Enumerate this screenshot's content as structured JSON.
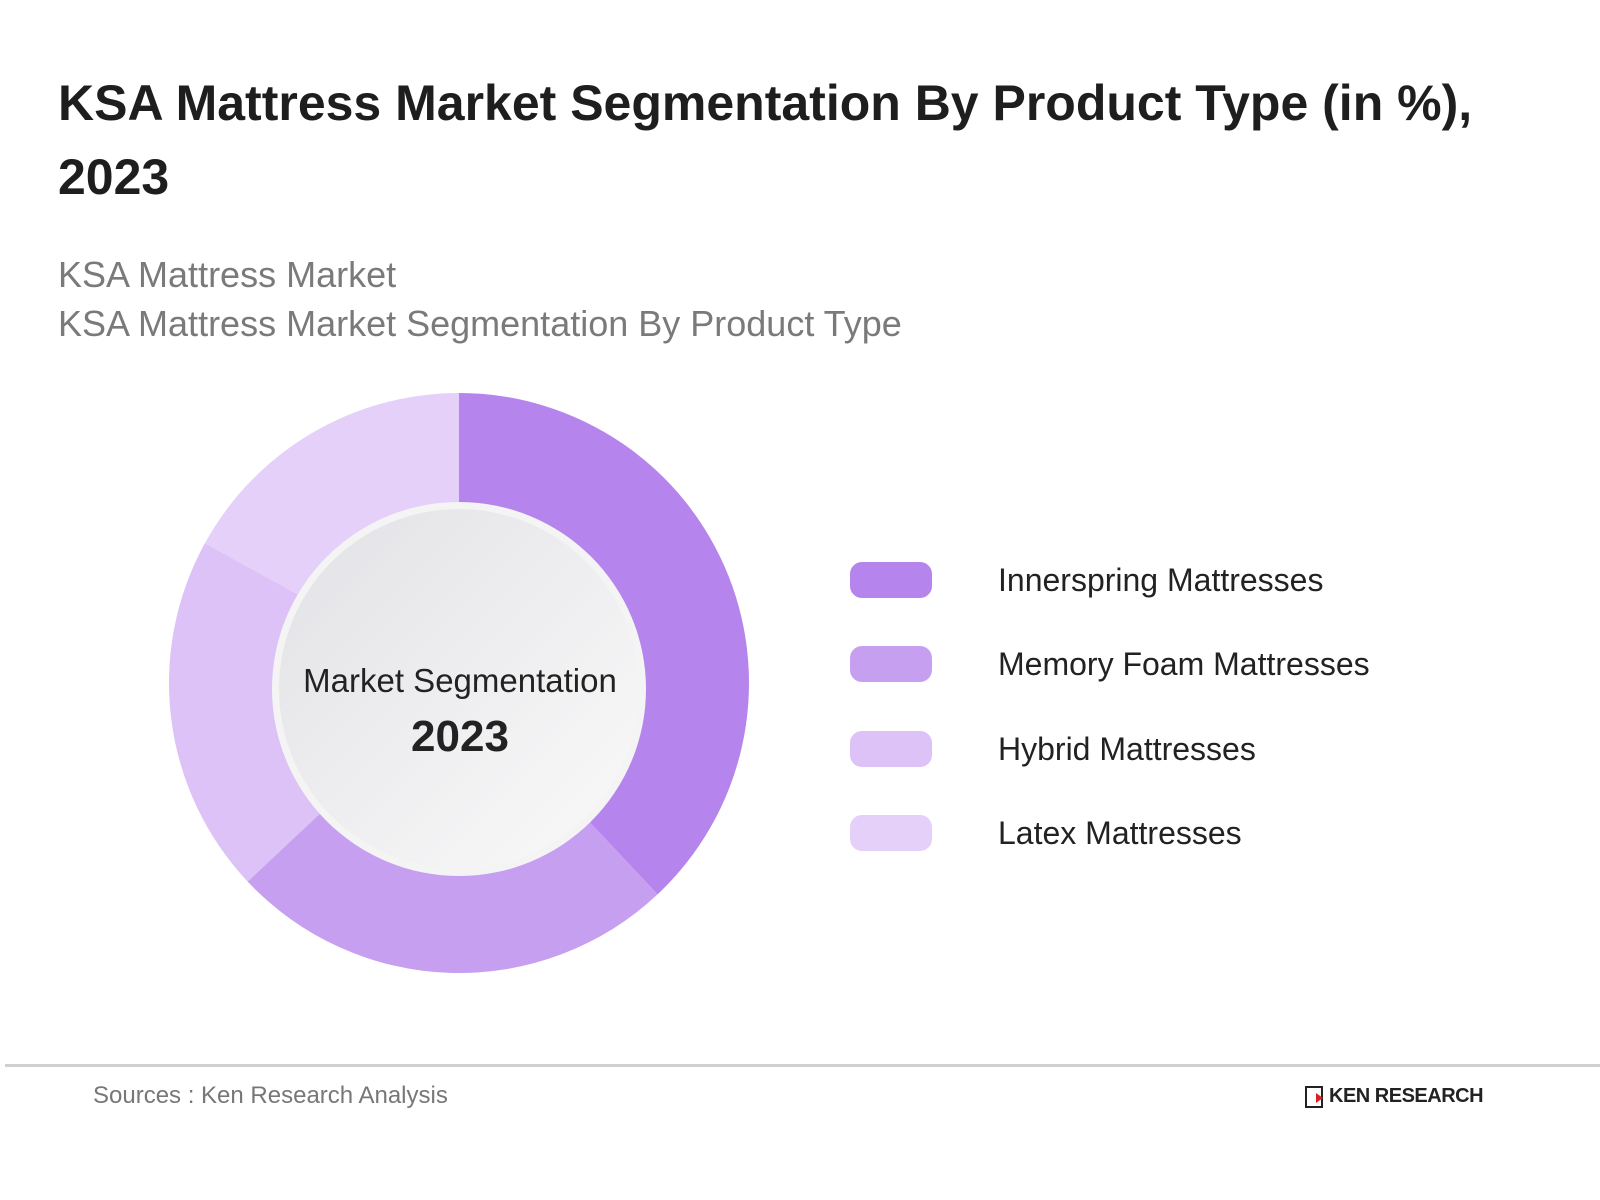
{
  "chart_data": {
    "type": "pie",
    "variant": "donut",
    "title": "KSA Mattress Market Segmentation By Product Type (in %), 2023",
    "subtitle_lines": [
      "KSA Mattress Market",
      "KSA Mattress Market Segmentation By Product Type"
    ],
    "center_label": "Market Segmentation",
    "center_value": "2023",
    "legend_placement": "right",
    "slices": [
      {
        "name": "Innerspring Mattresses",
        "value": 38,
        "color": "#b584ec"
      },
      {
        "name": "Memory Foam Mattresses",
        "value": 25,
        "color": "#c79ff0"
      },
      {
        "name": "Hybrid Mattresses",
        "value": 20,
        "color": "#dcc2f6"
      },
      {
        "name": "Latex Mattresses",
        "value": 17,
        "color": "#e4d0f8"
      }
    ]
  },
  "footer": {
    "source": "Sources : Ken Research Analysis",
    "logo_text": "KEN RESEARCH"
  }
}
